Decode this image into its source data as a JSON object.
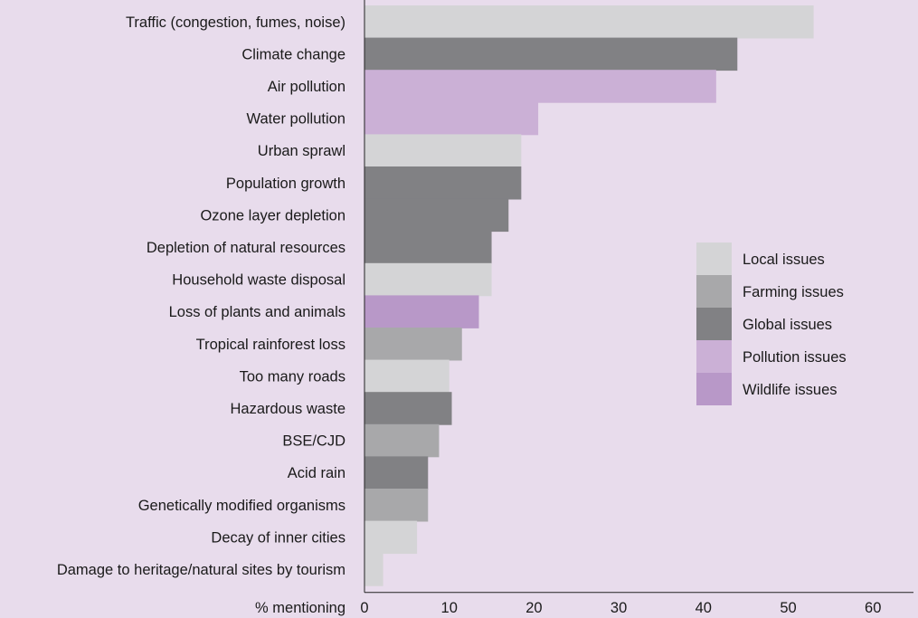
{
  "chart_data": {
    "type": "bar",
    "orientation": "horizontal",
    "title": "",
    "xlabel": "% mentioning",
    "ylabel": "",
    "xlim": [
      0,
      65
    ],
    "xticks": [
      0,
      10,
      20,
      30,
      40,
      50,
      60
    ],
    "grid": false,
    "legend_position": "right",
    "legend": [
      {
        "key": "local",
        "label": "Local issues",
        "color": "#d4d4d6"
      },
      {
        "key": "farming",
        "label": "Farming issues",
        "color": "#a8a8aa"
      },
      {
        "key": "global",
        "label": "Global issues",
        "color": "#818184"
      },
      {
        "key": "pollution",
        "label": "Pollution issues",
        "color": "#cbb0d6"
      },
      {
        "key": "wildlife",
        "label": "Wildlife issues",
        "color": "#b898c8"
      }
    ],
    "categories": [
      "Traffic (congestion, fumes, noise)",
      "Climate change",
      "Air pollution",
      "Water pollution",
      "Urban sprawl",
      "Population growth",
      "Ozone layer depletion",
      "Depletion of natural resources",
      "Household waste disposal",
      "Loss of plants and animals",
      "Tropical rainforest loss",
      "Too many roads",
      "Hazardous waste",
      "BSE/CJD",
      "Acid rain",
      "Genetically modified organisms",
      "Decay of inner cities",
      "Damage to heritage/natural sites by tourism"
    ],
    "values": [
      53,
      44,
      41.5,
      20.5,
      18.5,
      18.5,
      17,
      15,
      15,
      13.5,
      11.5,
      10,
      10.3,
      8.8,
      7.5,
      7.5,
      6.2,
      2.2
    ],
    "groups": [
      "local",
      "global",
      "pollution",
      "pollution",
      "local",
      "global",
      "global",
      "global",
      "local",
      "wildlife",
      "farming",
      "local",
      "global",
      "farming",
      "global",
      "farming",
      "local",
      "local"
    ]
  }
}
